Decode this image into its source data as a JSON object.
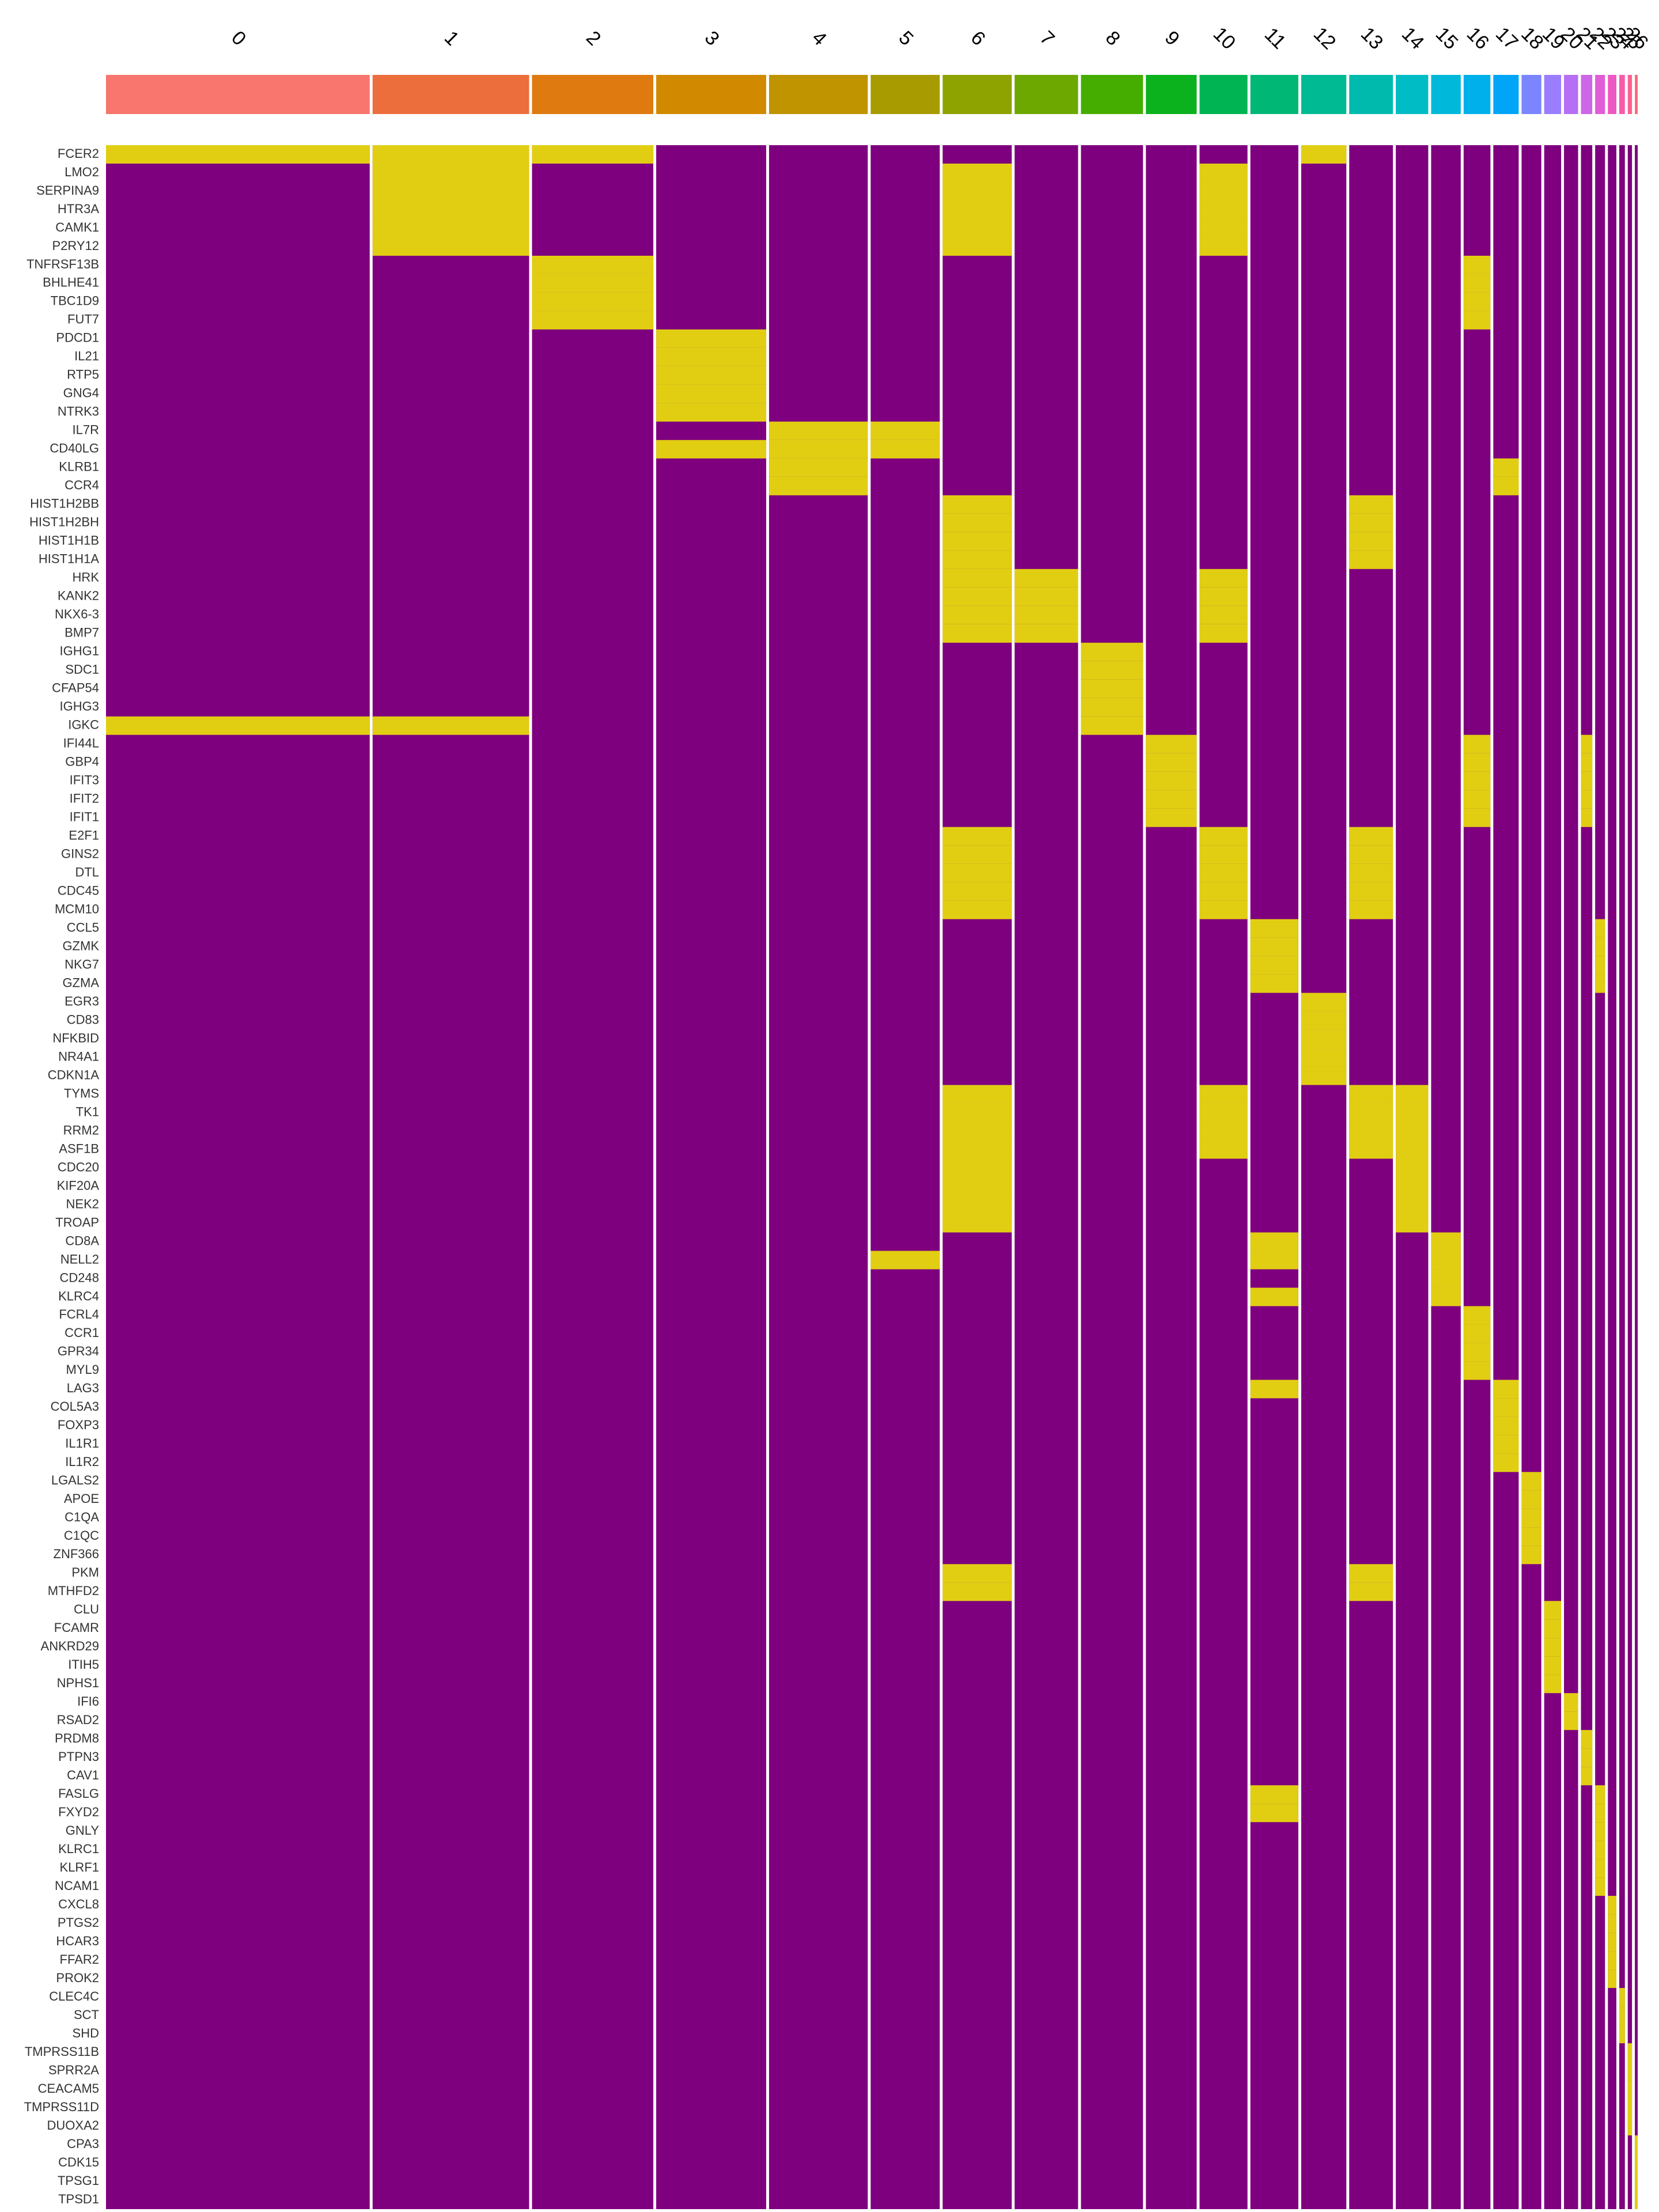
{
  "chart_data": {
    "type": "heatmap",
    "categories": [
      "0",
      "1",
      "2",
      "3",
      "4",
      "5",
      "6",
      "7",
      "8",
      "9",
      "10",
      "11",
      "12",
      "13",
      "14",
      "15",
      "16",
      "17",
      "18",
      "19",
      "20",
      "21",
      "22",
      "23",
      "24",
      "25",
      "26"
    ],
    "cluster_sizes": [
      187,
      111,
      86,
      78,
      70,
      49,
      49,
      45,
      44,
      36,
      34,
      34,
      32,
      31,
      23,
      21,
      19,
      18,
      14,
      12,
      10,
      8,
      7,
      6,
      4,
      3,
      2
    ],
    "colors": [
      "#F8766D",
      "#EB6E3C",
      "#DE7A10",
      "#D18A00",
      "#BF9400",
      "#A89B00",
      "#8EA200",
      "#6DA800",
      "#45AD00",
      "#0BB21E",
      "#00B454",
      "#00B776",
      "#00BA94",
      "#00BBAD",
      "#00BCC5",
      "#00B8D9",
      "#00B0EA",
      "#00A5F7",
      "#7A85FF",
      "#9B7DFF",
      "#B66EF5",
      "#CE66E8",
      "#E05DD8",
      "#EE58C2",
      "#F75BAB",
      "#FB6192",
      "#F8697C"
    ],
    "low_color": "#7E007E",
    "high_color": "#F2F200",
    "genes": [
      "FCER2",
      "LMO2",
      "SERPINA9",
      "HTR3A",
      "CAMK1",
      "P2RY12",
      "TNFRSF13B",
      "BHLHE41",
      "TBC1D9",
      "FUT7",
      "PDCD1",
      "IL21",
      "RTP5",
      "GNG4",
      "NTRK3",
      "IL7R",
      "CD40LG",
      "KLRB1",
      "CCR4",
      "HIST1H2BB",
      "HIST1H2BH",
      "HIST1H1B",
      "HIST1H1A",
      "HRK",
      "KANK2",
      "NKX6-3",
      "BMP7",
      "IGHG1",
      "SDC1",
      "CFAP54",
      "IGHG3",
      "IGKC",
      "IFI44L",
      "GBP4",
      "IFIT3",
      "IFIT2",
      "IFIT1",
      "E2F1",
      "GINS2",
      "DTL",
      "CDC45",
      "MCM10",
      "CCL5",
      "GZMK",
      "NKG7",
      "GZMA",
      "EGR3",
      "CD83",
      "NFKBID",
      "NR4A1",
      "CDKN1A",
      "TYMS",
      "TK1",
      "RRM2",
      "ASF1B",
      "CDC20",
      "KIF20A",
      "NEK2",
      "TROAP",
      "CD8A",
      "NELL2",
      "CD248",
      "KLRC4",
      "FCRL4",
      "CCR1",
      "GPR34",
      "MYL9",
      "LAG3",
      "COL5A3",
      "FOXP3",
      "IL1R1",
      "IL1R2",
      "LGALS2",
      "APOE",
      "C1QA",
      "C1QC",
      "ZNF366",
      "PKM",
      "MTHFD2",
      "CLU",
      "FCAMR",
      "ANKRD29",
      "ITIH5",
      "NPHS1",
      "IFI6",
      "RSAD2",
      "PRDM8",
      "PTPN3",
      "CAV1",
      "FASLG",
      "FXYD2",
      "GNLY",
      "KLRC1",
      "KLRF1",
      "NCAM1",
      "CXCL8",
      "PTGS2",
      "HCAR3",
      "FFAR2",
      "PROK2",
      "CLEC4C",
      "SCT",
      "SHD",
      "TMPRSS11B",
      "SPRR2A",
      "CEACAM5",
      "TMPRSS11D",
      "DUOXA2",
      "CPA3",
      "CDK15",
      "TPSG1",
      "TPSD1"
    ],
    "high": [
      [
        0,
        1,
        2,
        12
      ],
      [
        1,
        6,
        10
      ],
      [
        1,
        6,
        10
      ],
      [
        1,
        6,
        10
      ],
      [
        1,
        6,
        10
      ],
      [
        1,
        6,
        10
      ],
      [
        2,
        16
      ],
      [
        2,
        16
      ],
      [
        2,
        16
      ],
      [
        2,
        16
      ],
      [
        3
      ],
      [
        3
      ],
      [
        3
      ],
      [
        3
      ],
      [
        3
      ],
      [
        4,
        5
      ],
      [
        3,
        4,
        5
      ],
      [
        4,
        17
      ],
      [
        4,
        17
      ],
      [
        6,
        13
      ],
      [
        6,
        13
      ],
      [
        6,
        13
      ],
      [
        6,
        13
      ],
      [
        6,
        7,
        10
      ],
      [
        6,
        7,
        10
      ],
      [
        6,
        7,
        10
      ],
      [
        6,
        7,
        10
      ],
      [
        8
      ],
      [
        8
      ],
      [
        8
      ],
      [
        8
      ],
      [
        0,
        1,
        8
      ],
      [
        9,
        16,
        21
      ],
      [
        9,
        16,
        21
      ],
      [
        9,
        16,
        21
      ],
      [
        9,
        16,
        21
      ],
      [
        9,
        16,
        21
      ],
      [
        6,
        10,
        13
      ],
      [
        6,
        10,
        13
      ],
      [
        6,
        10,
        13
      ],
      [
        6,
        10,
        13
      ],
      [
        6,
        10,
        13
      ],
      [
        11,
        22
      ],
      [
        11,
        22
      ],
      [
        11,
        22
      ],
      [
        11,
        22
      ],
      [
        12
      ],
      [
        12
      ],
      [
        12
      ],
      [
        12
      ],
      [
        12
      ],
      [
        6,
        10,
        13,
        14
      ],
      [
        6,
        10,
        13,
        14
      ],
      [
        6,
        10,
        13,
        14
      ],
      [
        6,
        10,
        13,
        14
      ],
      [
        6,
        14
      ],
      [
        6,
        14
      ],
      [
        6,
        14
      ],
      [
        6,
        14
      ],
      [
        11,
        15
      ],
      [
        5,
        11,
        15
      ],
      [
        15
      ],
      [
        11,
        15
      ],
      [
        16
      ],
      [
        16
      ],
      [
        16
      ],
      [
        16
      ],
      [
        11,
        17
      ],
      [
        17
      ],
      [
        17
      ],
      [
        17
      ],
      [
        17
      ],
      [
        18
      ],
      [
        18
      ],
      [
        18
      ],
      [
        18
      ],
      [
        18
      ],
      [
        6,
        13
      ],
      [
        6,
        13
      ],
      [
        19
      ],
      [
        19
      ],
      [
        19
      ],
      [
        19
      ],
      [
        19
      ],
      [
        20
      ],
      [
        20
      ],
      [
        21
      ],
      [
        21
      ],
      [
        21
      ],
      [
        11,
        22
      ],
      [
        11,
        22
      ],
      [
        22
      ],
      [
        22
      ],
      [
        22
      ],
      [
        22
      ],
      [
        23
      ],
      [
        23
      ],
      [
        23
      ],
      [
        23
      ],
      [
        23
      ],
      [
        24
      ],
      [
        24
      ],
      [
        24
      ],
      [
        25
      ],
      [
        25
      ],
      [
        25
      ],
      [
        25
      ],
      [
        25
      ],
      [
        26
      ],
      [
        26
      ],
      [
        26
      ],
      [
        26
      ]
    ]
  }
}
